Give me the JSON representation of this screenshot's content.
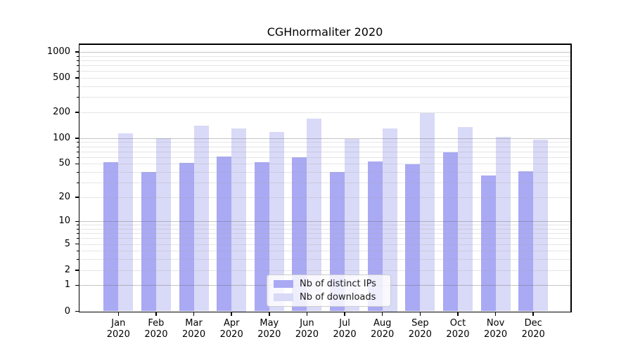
{
  "chart_data": {
    "type": "bar",
    "title": "CGHnormaliter 2020",
    "categories": [
      "Jan",
      "Feb",
      "Mar",
      "Apr",
      "May",
      "Jun",
      "Jul",
      "Aug",
      "Sep",
      "Oct",
      "Nov",
      "Dec"
    ],
    "year_label": "2020",
    "series": [
      {
        "name": "Nb of distinct IPs",
        "color": "#a9a9f4",
        "values": [
          52,
          40,
          51,
          61,
          52,
          60,
          40,
          53,
          49,
          68,
          36,
          41
        ]
      },
      {
        "name": "Nb of downloads",
        "color": "#d9d9f8",
        "values": [
          113,
          99,
          140,
          130,
          119,
          168,
          97,
          130,
          197,
          134,
          103,
          96
        ]
      }
    ],
    "y_ticks": [
      0,
      1,
      2,
      5,
      10,
      20,
      50,
      100,
      200,
      500,
      1000
    ],
    "y_scale": "log10(1+y)",
    "ylim": [
      0,
      1260
    ],
    "xlabel": "",
    "ylabel": "",
    "grid": "horizontal",
    "legend_position": "lower center"
  }
}
